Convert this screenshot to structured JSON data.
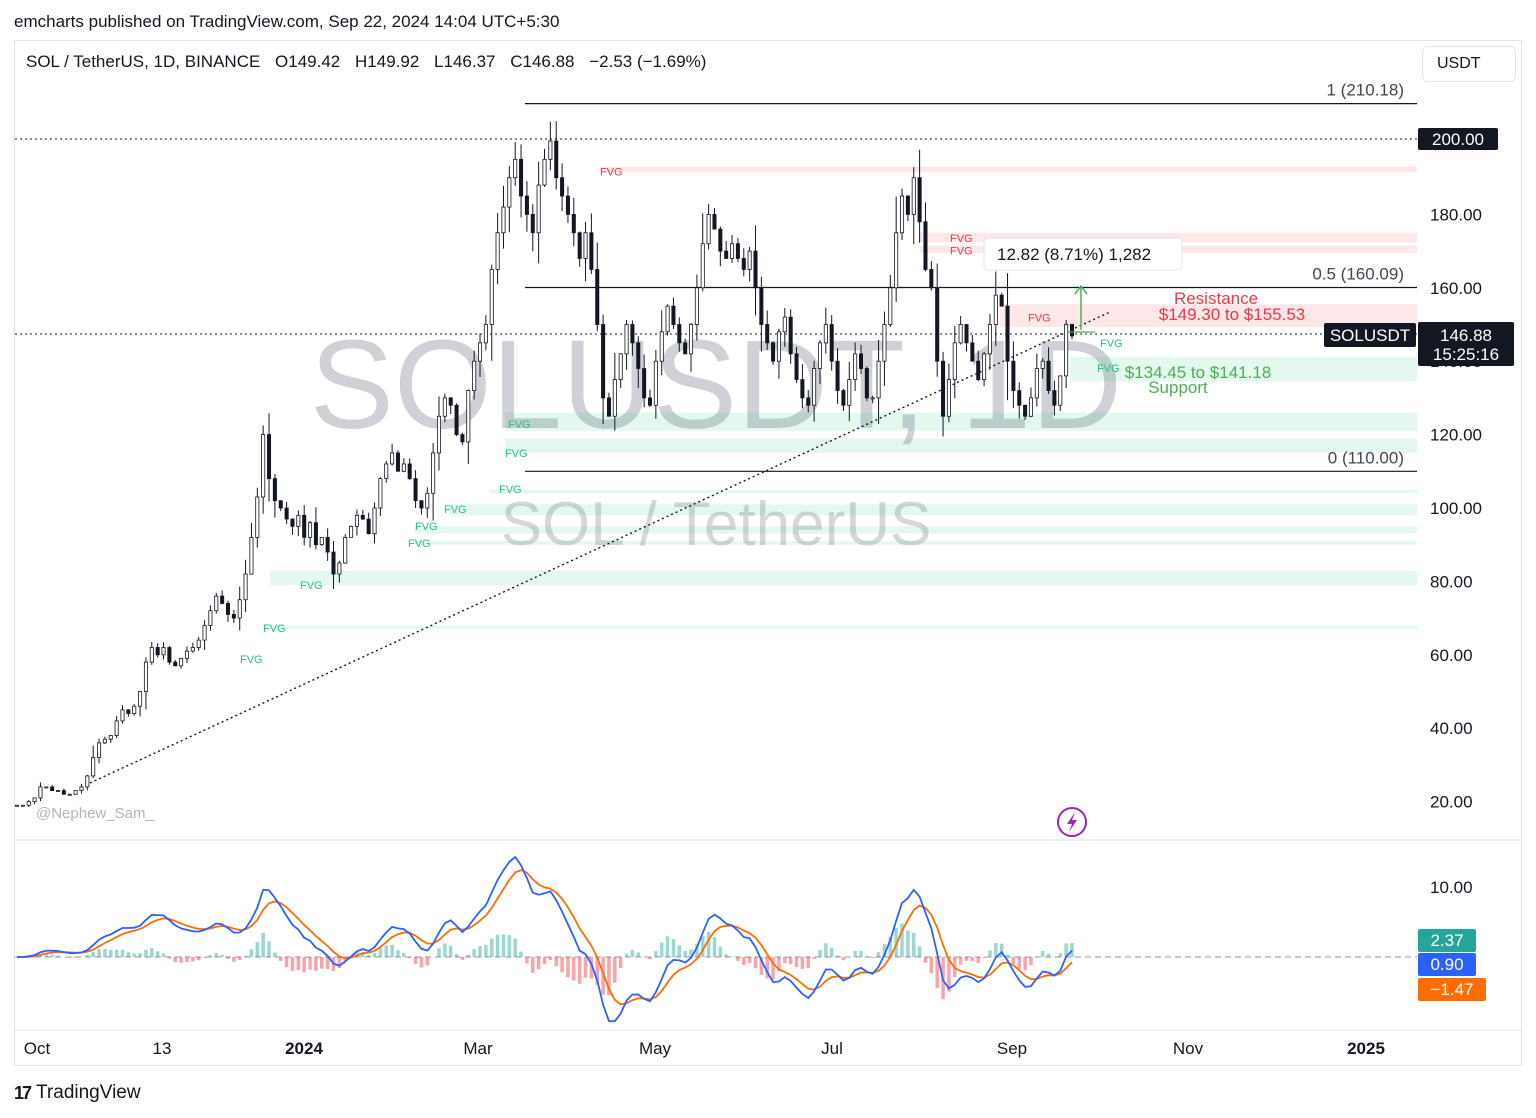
{
  "header": {
    "published": "emcharts published on TradingView.com, Sep 22, 2024 14:04 UTC+5:30",
    "symbol": "SOL / TetherUS, 1D, BINANCE",
    "open": "O149.42",
    "high": "H149.92",
    "low": "L146.37",
    "close": "C146.88",
    "change": "−2.53 (−1.69%)",
    "currency": "USDT"
  },
  "watermark": {
    "big": "SOLUSDT, 1D",
    "small": "SOL / TetherUS"
  },
  "author_tag": "@Nephew_Sam_",
  "footer": {
    "logo": "17",
    "brand": "TradingView"
  },
  "chart_data": {
    "type": "candlestick",
    "price_axis": {
      "ticks": [
        "20.00",
        "40.00",
        "60.00",
        "80.00",
        "100.00",
        "120.00",
        "140.00",
        "160.00",
        "180.00",
        "200.00"
      ],
      "ylim": [
        10,
        220
      ]
    },
    "time_axis": {
      "ticks": [
        "Oct",
        "13",
        "2024",
        "Mar",
        "May",
        "Jul",
        "Sep",
        "Nov",
        "2025"
      ]
    },
    "fib_levels": [
      {
        "label": "1 (210.18)",
        "value": 210.18
      },
      {
        "label": "0.5 (160.09)",
        "value": 160.09
      },
      {
        "label": "0 (110.00)",
        "value": 110.0
      }
    ],
    "price_markers": [
      {
        "label": "200.00",
        "value": 200.0
      },
      {
        "symbol": "SOLUSDT",
        "price": "146.88",
        "countdown": "15:25:16",
        "value": 146.88
      }
    ],
    "measurement": "12.82 (8.71%) 1,282",
    "resistance": {
      "title": "Resistance",
      "range": "$149.30 to $155.53",
      "from": 149.3,
      "to": 155.53
    },
    "support": {
      "range": "$134.45 to $141.18",
      "title": "Support",
      "from": 134.45,
      "to": 141.18
    },
    "fvg_label": "FVG",
    "bearish_fvg": [
      [
        191.5,
        193
      ],
      [
        172.5,
        175
      ],
      [
        169.5,
        171.5
      ],
      [
        149.3,
        155.5
      ]
    ],
    "bullish_fvg": [
      [
        134.45,
        141.18
      ],
      [
        121,
        126
      ],
      [
        115,
        119
      ],
      [
        104,
        105
      ],
      [
        98,
        101
      ],
      [
        93,
        95
      ],
      [
        90,
        91
      ],
      [
        79,
        83
      ],
      [
        67,
        68
      ]
    ],
    "oscillator": {
      "ticks": [
        "10.00"
      ],
      "histogram": "2.37",
      "macd": "0.90",
      "signal": "−1.47",
      "colors": {
        "histogram": "#26a69a",
        "macd": "#2962ff",
        "signal": "#ff6d00"
      }
    },
    "closes": [
      19,
      19,
      20,
      21,
      24,
      24,
      23,
      23,
      22,
      22,
      23,
      24,
      27,
      32,
      36,
      37,
      38,
      42,
      45,
      44,
      46,
      50,
      58,
      62,
      60,
      62,
      58,
      57,
      59,
      61,
      62,
      64,
      68,
      72,
      76,
      74,
      71,
      70,
      75,
      82,
      92,
      103,
      120,
      108,
      102,
      100,
      97,
      95,
      98,
      92,
      96,
      90,
      92,
      88,
      82,
      85,
      92,
      95,
      98,
      97,
      93,
      100,
      108,
      112,
      115,
      110,
      112,
      108,
      102,
      100,
      104,
      115,
      125,
      130,
      128,
      120,
      118,
      132,
      140,
      145,
      150,
      165,
      175,
      182,
      190,
      195,
      185,
      180,
      175,
      188,
      195,
      200,
      190,
      185,
      180,
      175,
      168,
      175,
      165,
      150,
      130,
      125,
      135,
      142,
      150,
      145,
      138,
      130,
      128,
      140,
      148,
      155,
      150,
      145,
      142,
      150,
      160,
      172,
      180,
      176,
      170,
      168,
      172,
      168,
      165,
      170,
      160,
      150,
      145,
      140,
      148,
      152,
      142,
      135,
      130,
      128,
      138,
      145,
      150,
      140,
      132,
      128,
      135,
      142,
      138,
      130,
      130,
      140,
      150,
      160,
      175,
      185,
      180,
      190,
      178,
      165,
      160,
      140,
      125,
      135,
      145,
      150,
      145,
      140,
      135,
      142,
      150,
      158,
      155,
      140,
      132,
      128,
      125,
      130,
      138,
      140,
      132,
      128,
      136,
      150,
      146.88
    ]
  }
}
